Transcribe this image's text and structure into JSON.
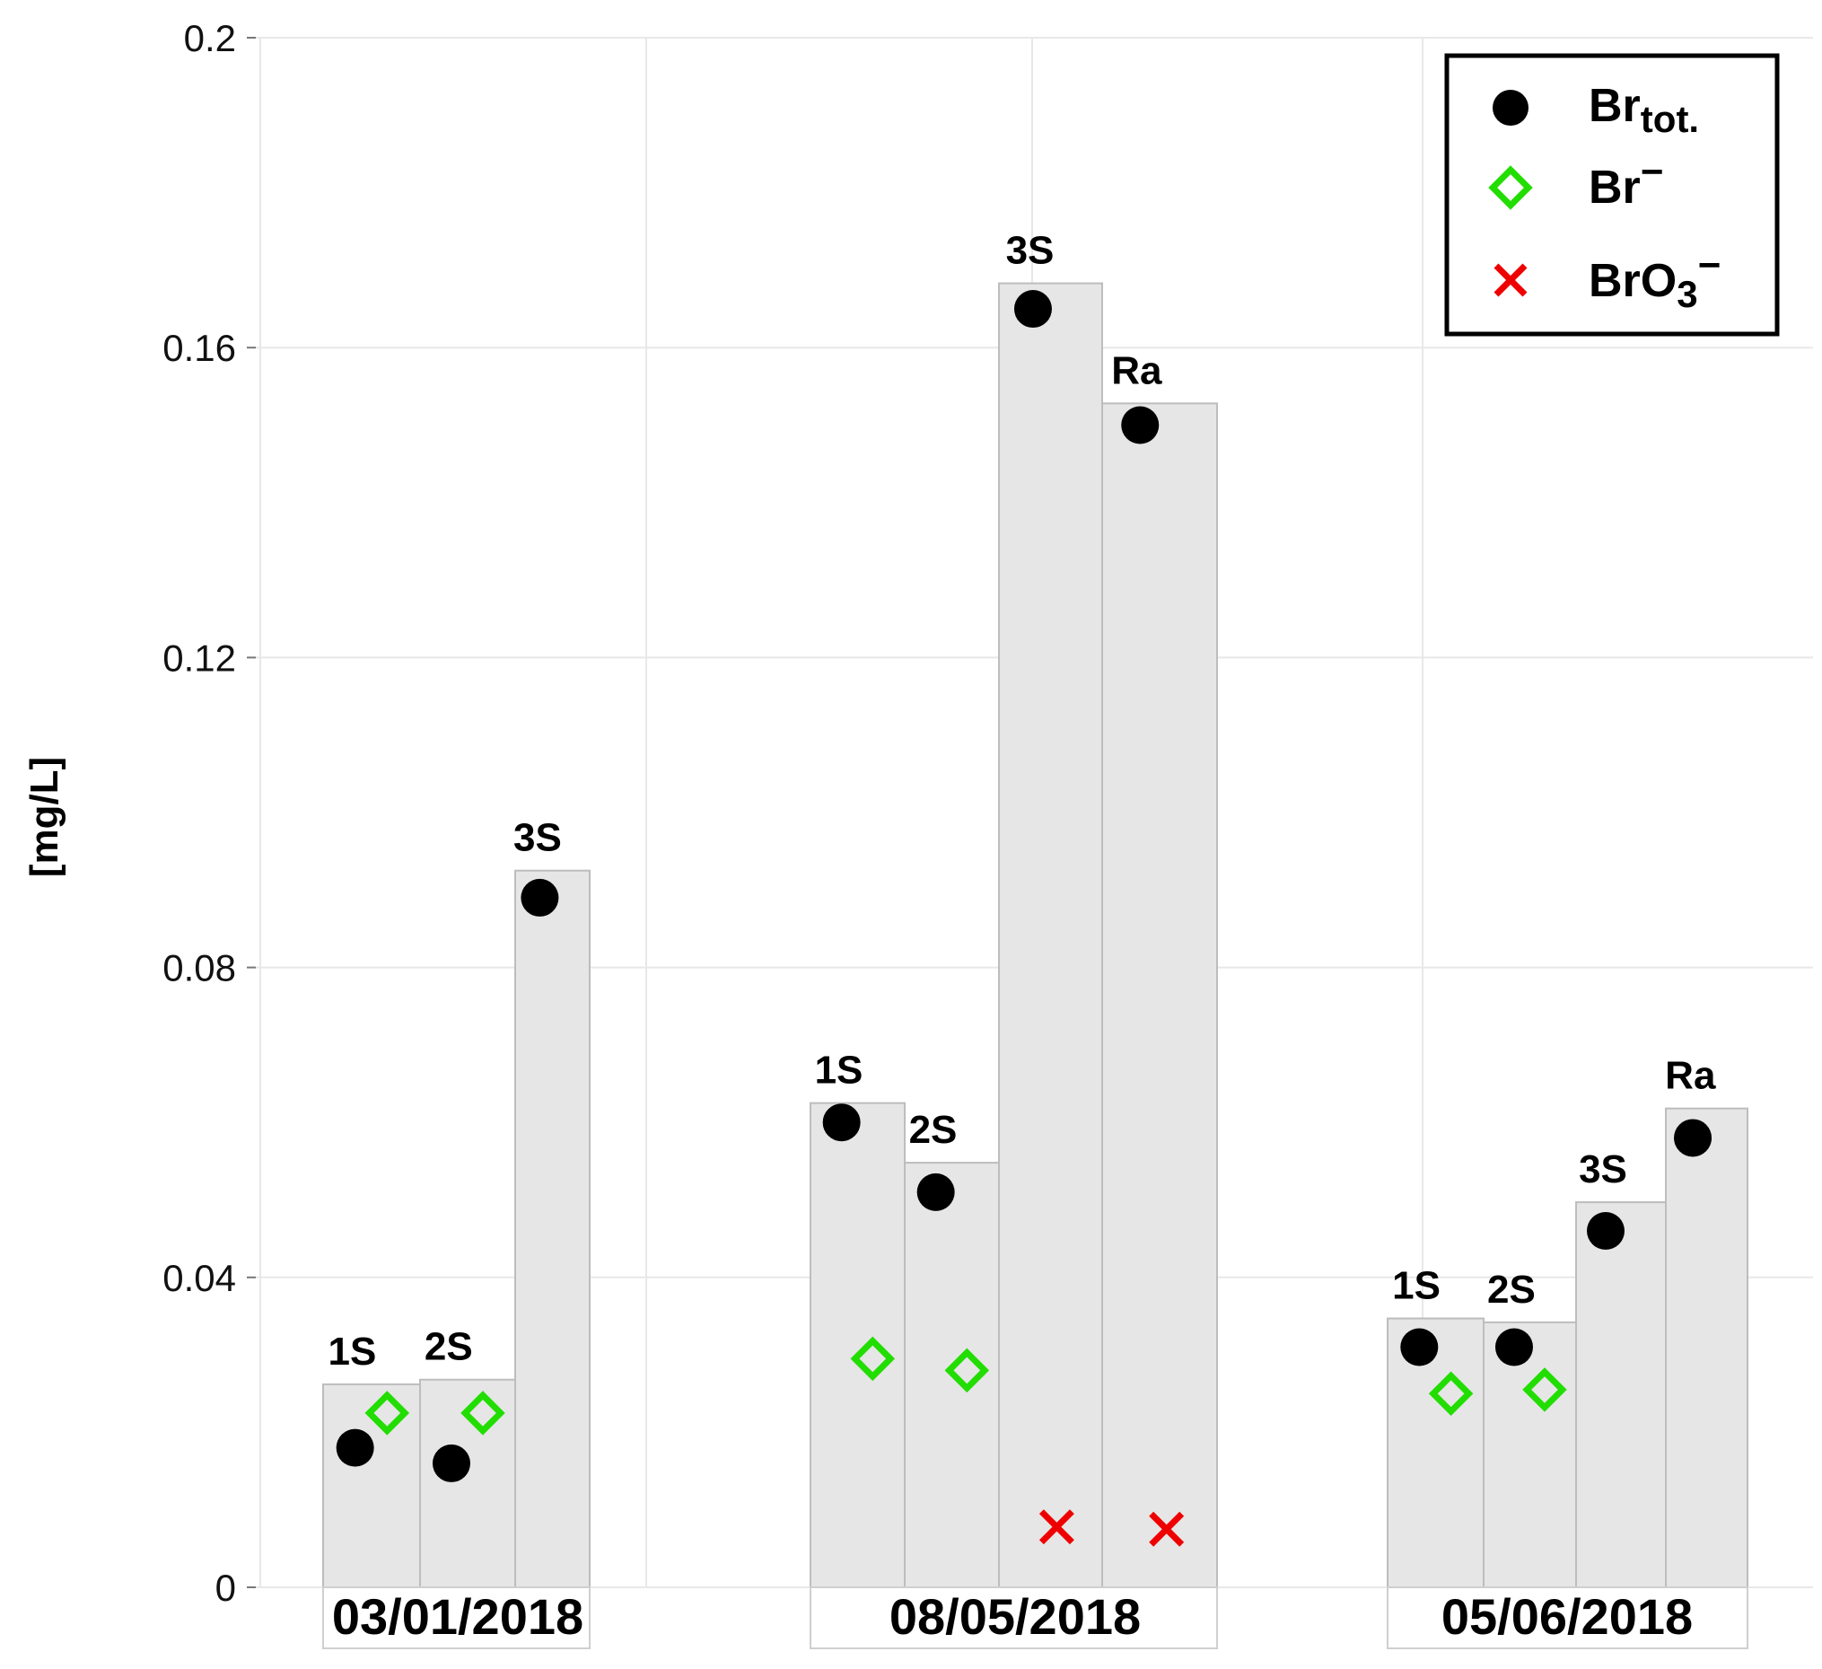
{
  "chart_data": {
    "type": "bar",
    "title": "",
    "xlabel": "",
    "ylabel": "[mg/L]",
    "ylim": [
      0,
      0.2
    ],
    "yticks": [
      "0",
      "0.04",
      "0.08",
      "0.12",
      "0.16",
      "0.2"
    ],
    "grid": true,
    "legend_position": "top-right",
    "groups": [
      {
        "date": "03/01/2018",
        "bars": [
          {
            "label": "1S",
            "value": 0.0262,
            "br_tot": 0.018,
            "br_minus": 0.0225,
            "bro3": null
          },
          {
            "label": "2S",
            "value": 0.0268,
            "br_tot": 0.016,
            "br_minus": 0.0225,
            "bro3": null
          },
          {
            "label": "3S",
            "value": 0.0925,
            "br_tot": 0.089,
            "br_minus": null,
            "bro3": null
          }
        ]
      },
      {
        "date": "08/05/2018",
        "bars": [
          {
            "label": "1S",
            "value": 0.0625,
            "br_tot": 0.06,
            "br_minus": 0.0295,
            "bro3": null
          },
          {
            "label": "2S",
            "value": 0.0548,
            "br_tot": 0.051,
            "br_minus": 0.028,
            "bro3": null
          },
          {
            "label": "3S",
            "value": 0.1683,
            "br_tot": 0.165,
            "br_minus": null,
            "bro3": 0.0078
          },
          {
            "label": "Ra",
            "value": 0.1528,
            "br_tot": 0.15,
            "br_minus": null,
            "bro3": 0.0075
          }
        ]
      },
      {
        "date": "05/06/2018",
        "bars": [
          {
            "label": "1S",
            "value": 0.0347,
            "br_tot": 0.031,
            "br_minus": 0.025,
            "bro3": null
          },
          {
            "label": "2S",
            "value": 0.0342,
            "br_tot": 0.031,
            "br_minus": 0.0255,
            "bro3": null
          },
          {
            "label": "3S",
            "value": 0.0497,
            "br_tot": 0.046,
            "br_minus": null,
            "bro3": null
          },
          {
            "label": "Ra",
            "value": 0.0618,
            "br_tot": 0.058,
            "br_minus": null,
            "bro3": null
          }
        ]
      }
    ],
    "legend": {
      "br_tot": {
        "base": "Br",
        "sub": "tot."
      },
      "br_minus": {
        "base": "Br",
        "sup": "−"
      },
      "bro3": {
        "base": "BrO",
        "sub": "3",
        "sup": "−"
      }
    },
    "colors": {
      "bar_fill": "#e6e6e6",
      "bar_stroke": "#bdbdbd",
      "grid": "#e8e8e8",
      "br_tot": "#000000",
      "br_minus": "#22dd00",
      "bro3": "#ee0000"
    }
  }
}
